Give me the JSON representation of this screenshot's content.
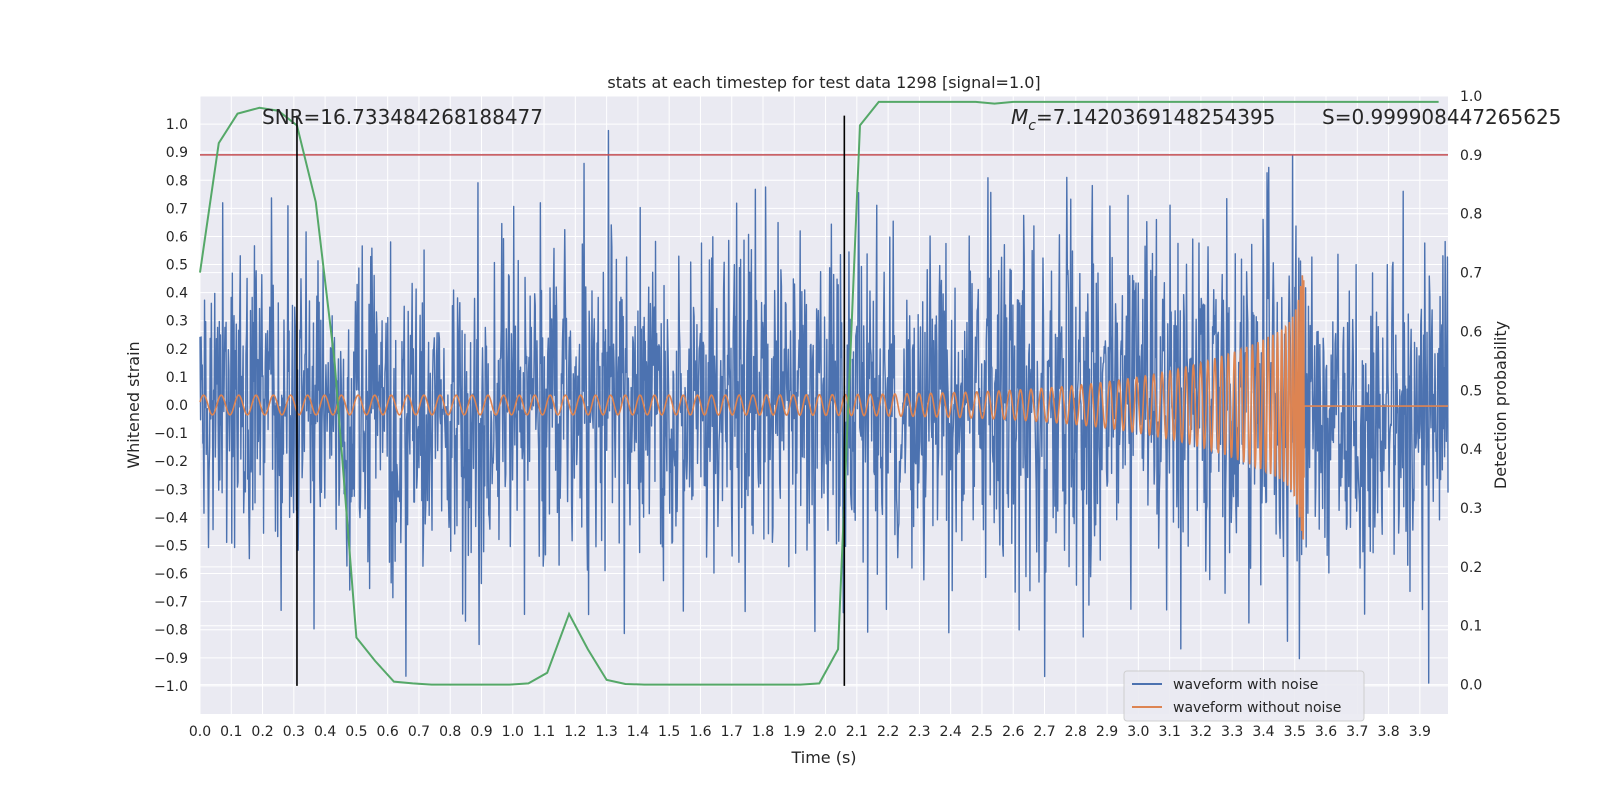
{
  "chart_data": {
    "type": "line",
    "title": "stats at each timestep for test data 1298 [signal=1.0]",
    "xlabel": "Time (s)",
    "ylabel": "Whitened strain",
    "ylabel_right": "Detection probability",
    "xlim": [
      0.0,
      3.99
    ],
    "ylim": [
      -1.1,
      1.1
    ],
    "ylim_right": [
      -0.05,
      1.0
    ],
    "x_ticks": [
      "0.0",
      "0.1",
      "0.2",
      "0.3",
      "0.4",
      "0.5",
      "0.6",
      "0.7",
      "0.8",
      "0.9",
      "1.0",
      "1.1",
      "1.2",
      "1.3",
      "1.4",
      "1.5",
      "1.6",
      "1.7",
      "1.8",
      "1.9",
      "2.0",
      "2.1",
      "2.2",
      "2.3",
      "2.4",
      "2.5",
      "2.6",
      "2.7",
      "2.8",
      "2.9",
      "3.0",
      "3.1",
      "3.2",
      "3.3",
      "3.4",
      "3.5",
      "3.6",
      "3.7",
      "3.8",
      "3.9"
    ],
    "y_ticks": [
      "1.0",
      "0.9",
      "0.8",
      "0.7",
      "0.6",
      "0.5",
      "0.4",
      "0.3",
      "0.2",
      "0.1",
      "0.0",
      "−0.1",
      "−0.2",
      "−0.3",
      "−0.4",
      "−0.5",
      "−0.6",
      "−0.7",
      "−0.8",
      "−0.9",
      "−1.0"
    ],
    "y_right_ticks": [
      "1.0",
      "0.9",
      "0.8",
      "0.7",
      "0.6",
      "0.5",
      "0.4",
      "0.3",
      "0.2",
      "0.1",
      "0.0"
    ],
    "annotations": {
      "snr": "SNR=16.733484268188477",
      "mc_symbol": "M",
      "mc_sub": "c",
      "mc_value": "=7.1420369148254395",
      "s": "S=0.999908447265625"
    },
    "threshold": {
      "value": 0.9,
      "axis": "right",
      "color": "#c44e52"
    },
    "vlines": [
      0.31,
      2.06
    ],
    "noise_seed": 1298,
    "series": [
      {
        "name": "waveform with noise",
        "color": "#4c72b0",
        "kind": "noise",
        "amplitude_range": [
          -1.0,
          1.0
        ]
      },
      {
        "name": "waveform without noise",
        "color": "#dd8452",
        "kind": "chirp",
        "merger_time": 3.53,
        "peak_amplitude": 0.54
      },
      {
        "name": "detection probability",
        "color": "#55a868",
        "axis": "right",
        "x": [
          0.0,
          0.06,
          0.12,
          0.19,
          0.25,
          0.31,
          0.37,
          0.43,
          0.5,
          0.56,
          0.62,
          0.68,
          0.74,
          0.8,
          0.86,
          0.93,
          0.99,
          1.05,
          1.11,
          1.18,
          1.24,
          1.3,
          1.36,
          1.42,
          1.49,
          1.55,
          1.61,
          1.67,
          1.73,
          1.79,
          1.86,
          1.92,
          1.98,
          2.04,
          2.11,
          2.17,
          2.23,
          2.29,
          2.35,
          2.42,
          2.48,
          2.54,
          2.6,
          2.66,
          2.72,
          2.79,
          2.85,
          2.91,
          2.97,
          3.03,
          3.09,
          3.16,
          3.22,
          3.28,
          3.34,
          3.4,
          3.46,
          3.53,
          3.59,
          3.65,
          3.71,
          3.77,
          3.83,
          3.89,
          3.96
        ],
        "y": [
          0.7,
          0.92,
          0.97,
          0.98,
          0.975,
          0.95,
          0.82,
          0.55,
          0.08,
          0.04,
          0.005,
          0.002,
          0.0,
          0.0,
          0.0,
          0.0,
          0.0,
          0.002,
          0.02,
          0.12,
          0.06,
          0.008,
          0.001,
          0.0,
          0.0,
          0.0,
          0.0,
          0.0,
          0.0,
          0.0,
          0.0,
          0.0,
          0.002,
          0.06,
          0.95,
          0.99,
          0.99,
          0.99,
          0.99,
          0.99,
          0.99,
          0.987,
          0.99,
          0.99,
          0.99,
          0.99,
          0.99,
          0.99,
          0.99,
          0.99,
          0.99,
          0.99,
          0.99,
          0.99,
          0.99,
          0.99,
          0.99,
          0.99,
          0.99,
          0.99,
          0.99,
          0.99,
          0.99,
          0.99,
          0.99
        ]
      }
    ],
    "legend": {
      "loc": "lower right",
      "entries": [
        "waveform with noise",
        "waveform without noise"
      ]
    },
    "grid": true
  }
}
